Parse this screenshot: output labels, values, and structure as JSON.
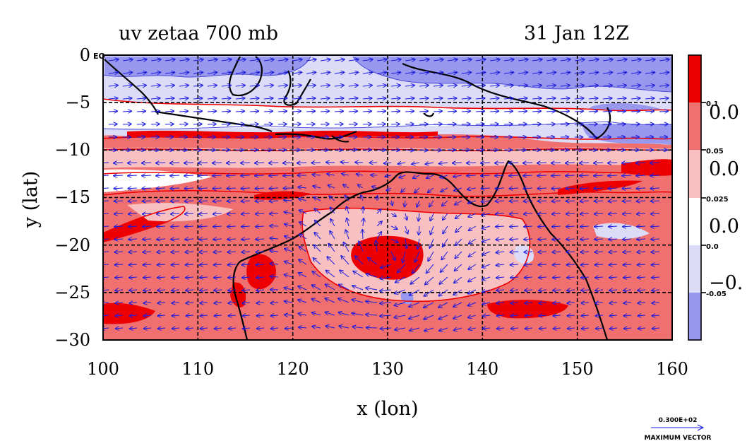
{
  "title": {
    "left": "uv zetaa 700 mb",
    "right": "31 Jan 12Z"
  },
  "axes": {
    "xlabel": "x (lon)",
    "ylabel": "y (lat)",
    "xlim": [
      100,
      160
    ],
    "ylim": [
      -30,
      0
    ],
    "xticks": [
      "100",
      "110",
      "120",
      "130",
      "140",
      "150",
      "160"
    ],
    "yticks": [
      "0",
      "−5",
      "−10",
      "−15",
      "−20",
      "−25",
      "−30"
    ],
    "eq_label": "EQ"
  },
  "colorbar": {
    "small_labels": [
      "0.1",
      "0.05",
      "0.025",
      "0.0",
      "-0.05"
    ],
    "big_labels": [
      "0.0",
      "0.0",
      "0.0",
      "−0."
    ],
    "colors": [
      "#ee0000",
      "#f07070",
      "#f8c0c0",
      "#ffffff",
      "#dcdcf8",
      "#9898ee"
    ]
  },
  "vector_legend": {
    "value": "0.300E+02",
    "label": "MAXIMUM VECTOR"
  },
  "chart_data": {
    "type": "map",
    "field": "absolute vorticity (zetaa) shaded with wind vectors (uv)",
    "level": "700 mb",
    "time": "31 Jan 12Z",
    "lon_range": [
      100,
      160
    ],
    "lat_range": [
      -30,
      0
    ],
    "grid": true,
    "contour_levels": [
      -0.05,
      0.0,
      0.025,
      0.05,
      0.1
    ],
    "max_vector": 30.0,
    "colors": {
      "strong_positive": "#ee0000",
      "positive": "#f07070",
      "weak_positive": "#f8c0c0",
      "neutral": "#ffffff",
      "weak_negative": "#dcdcf8",
      "negative": "#9898ee",
      "vectors": "#1a1adf",
      "coast": "#000000"
    }
  }
}
